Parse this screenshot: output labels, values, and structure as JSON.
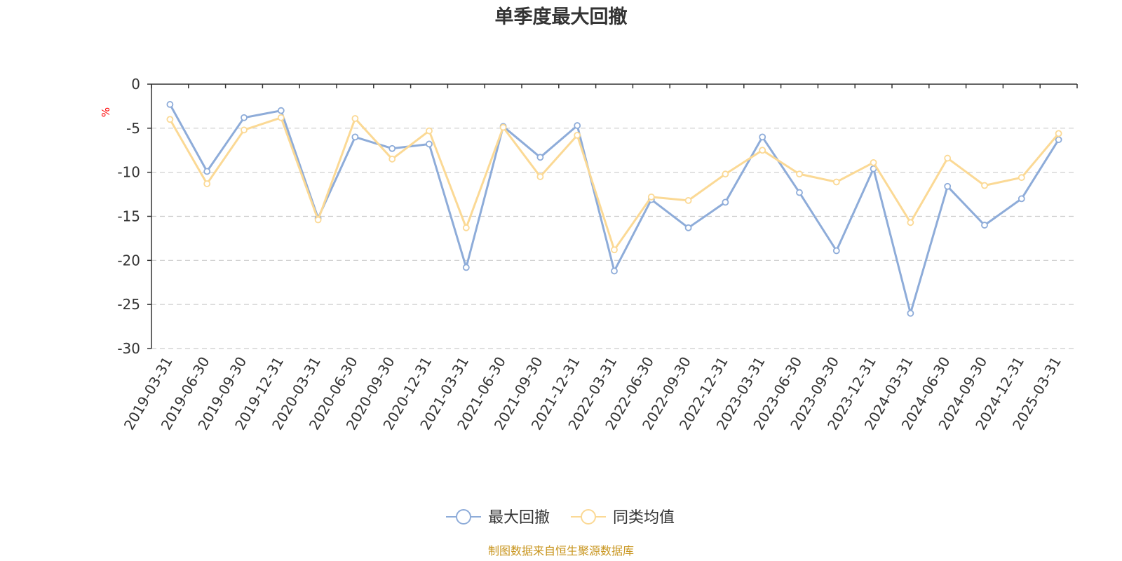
{
  "chart_data": {
    "type": "line",
    "title": "单季度最大回撤",
    "ylabel": "%",
    "ylim": [
      -30,
      0
    ],
    "yticks": [
      0,
      -5,
      -10,
      -15,
      -20,
      -25,
      -30
    ],
    "grid": true,
    "legend_position": "bottom",
    "categories": [
      "2019-03-31",
      "2019-06-30",
      "2019-09-30",
      "2019-12-31",
      "2020-03-31",
      "2020-06-30",
      "2020-09-30",
      "2020-12-31",
      "2021-03-31",
      "2021-06-30",
      "2021-09-30",
      "2021-12-31",
      "2022-03-31",
      "2022-06-30",
      "2022-09-30",
      "2022-12-31",
      "2023-03-31",
      "2023-06-30",
      "2023-09-30",
      "2023-12-31",
      "2024-03-31",
      "2024-06-30",
      "2024-09-30",
      "2024-12-31",
      "2025-03-31"
    ],
    "series": [
      {
        "name": "最大回撤",
        "color": "#8eacd9",
        "values": [
          -2.3,
          -9.9,
          -3.8,
          -3.0,
          -15.2,
          -6.0,
          -7.3,
          -6.8,
          -20.8,
          -4.8,
          -8.3,
          -4.7,
          -21.2,
          -13.1,
          -16.3,
          -13.4,
          -6.0,
          -12.3,
          -18.9,
          -9.6,
          -26.0,
          -11.6,
          -16.0,
          -13.0,
          -6.3
        ]
      },
      {
        "name": "同类均值",
        "color": "#fbd995",
        "values": [
          -4.0,
          -11.3,
          -5.2,
          -3.8,
          -15.4,
          -3.9,
          -8.5,
          -5.3,
          -16.3,
          -4.9,
          -10.5,
          -5.8,
          -18.8,
          -12.8,
          -13.2,
          -10.2,
          -7.5,
          -10.2,
          -11.1,
          -8.9,
          -15.7,
          -8.4,
          -11.5,
          -10.6,
          -5.6
        ]
      }
    ]
  },
  "legend": {
    "items": [
      "最大回撤",
      "同类均值"
    ]
  },
  "footer": {
    "source": "制图数据来自恒生聚源数据库"
  }
}
